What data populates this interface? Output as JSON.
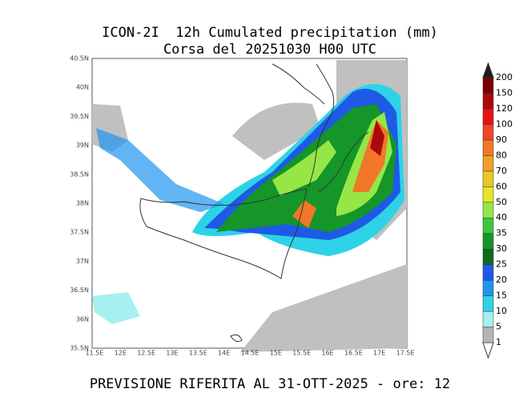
{
  "header": {
    "title": "ICON-2I  12h Cumulated precipitation (mm)",
    "subtitle": "Corsa del 20251030 H00 UTC"
  },
  "map": {
    "lon_ticks": [
      "11.5E",
      "12E",
      "12.5E",
      "13E",
      "13.5E",
      "14E",
      "14.5E",
      "15E",
      "15.5E",
      "16E",
      "16.5E",
      "17E",
      "17.5E"
    ],
    "lat_ticks": [
      "40.5N",
      "40N",
      "39.5N",
      "39N",
      "38.5N",
      "38N",
      "37.5N",
      "37N",
      "36.5N",
      "36N",
      "35.5N"
    ]
  },
  "colorbar": {
    "levels": [
      1,
      5,
      10,
      15,
      20,
      25,
      30,
      35,
      40,
      50,
      60,
      70,
      80,
      90,
      100,
      120,
      150,
      200
    ],
    "colors": [
      "#b4b4b4",
      "#a6f0f0",
      "#2ed2e6",
      "#1e96f0",
      "#1e5ae6",
      "#0a6e1e",
      "#149628",
      "#3cc83c",
      "#96e646",
      "#e6e628",
      "#e6c828",
      "#f0a028",
      "#f07828",
      "#f04628",
      "#e61414",
      "#aa0a0a",
      "#7a0000",
      "#1e1e1e"
    ]
  },
  "footer": "PREVISIONE RIFERITA AL 31-OTT-2025 - ore: 12"
}
